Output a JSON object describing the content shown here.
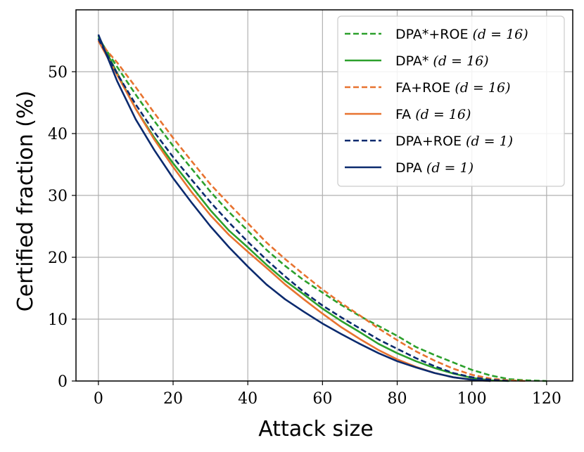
{
  "chart_data": {
    "type": "line",
    "xlabel": "Attack size",
    "ylabel": "Certified fraction (%)",
    "xlim": [
      -6,
      127
    ],
    "ylim": [
      0,
      60
    ],
    "xticks": [
      0,
      20,
      40,
      60,
      80,
      100,
      120
    ],
    "yticks": [
      0,
      10,
      20,
      30,
      40,
      50
    ],
    "grid": true,
    "legend_position": "top-right",
    "series": [
      {
        "name": "DPA*+ROE (d = 16)",
        "legend_main": "DPA*+ROE",
        "legend_math": "(d = 16)",
        "color": "#2ca02c",
        "style": "dashed",
        "x": [
          0,
          5,
          10,
          15,
          20,
          25,
          30,
          35,
          40,
          45,
          50,
          55,
          60,
          65,
          70,
          75,
          80,
          85,
          90,
          95,
          100,
          105,
          110,
          115,
          120
        ],
        "y": [
          55.5,
          50.8,
          46.3,
          42.0,
          38.0,
          34.3,
          30.6,
          27.3,
          24.3,
          21.2,
          18.6,
          16.3,
          14.3,
          12.3,
          10.5,
          8.9,
          7.3,
          5.5,
          4.2,
          3.0,
          1.8,
          0.9,
          0.3,
          0.1,
          0
        ]
      },
      {
        "name": "DPA* (d = 16)",
        "legend_main": "DPA*",
        "legend_math": "(d = 16)",
        "color": "#2ca02c",
        "style": "solid",
        "x": [
          0,
          5,
          10,
          15,
          20,
          25,
          30,
          35,
          40,
          45,
          50,
          55,
          60,
          65,
          70,
          75,
          80,
          85,
          90,
          95,
          100,
          105,
          110
        ],
        "y": [
          55.8,
          49.8,
          44.0,
          39.3,
          35.2,
          31.4,
          27.6,
          24.3,
          21.6,
          18.8,
          16.2,
          14.0,
          11.7,
          9.7,
          7.9,
          6.0,
          4.5,
          3.2,
          2.1,
          1.2,
          0.5,
          0.1,
          0
        ]
      },
      {
        "name": "FA+ROE (d = 16)",
        "legend_main": "FA+ROE",
        "legend_math": "(d = 16)",
        "color": "#e87330",
        "style": "dashed",
        "x": [
          0,
          5,
          10,
          15,
          20,
          25,
          30,
          35,
          40,
          45,
          50,
          55,
          60,
          65,
          70,
          75,
          80,
          85,
          90,
          95,
          100,
          105,
          110,
          115
        ],
        "y": [
          55.0,
          51.5,
          47.5,
          43.3,
          39.3,
          35.5,
          31.8,
          28.6,
          25.5,
          22.4,
          19.7,
          17.2,
          14.8,
          12.6,
          10.6,
          8.5,
          6.6,
          4.8,
          3.3,
          2.0,
          1.0,
          0.4,
          0.1,
          0
        ]
      },
      {
        "name": "FA (d = 16)",
        "legend_main": "FA",
        "legend_math": "(d = 16)",
        "color": "#e87330",
        "style": "solid",
        "x": [
          0,
          5,
          10,
          15,
          20,
          25,
          30,
          35,
          40,
          45,
          50,
          55,
          60,
          65,
          70,
          75,
          80,
          85,
          90,
          95,
          100,
          105
        ],
        "y": [
          55.0,
          49.5,
          44.0,
          39.0,
          34.6,
          30.5,
          26.8,
          23.6,
          20.9,
          18.3,
          15.6,
          13.2,
          10.9,
          8.7,
          6.8,
          5.0,
          3.5,
          2.3,
          1.3,
          0.6,
          0.2,
          0
        ]
      },
      {
        "name": "DPA+ROE (d = 1)",
        "legend_main": "DPA+ROE",
        "legend_math": "(d = 1)",
        "color": "#0b2a6e",
        "style": "dashed",
        "x": [
          0,
          5,
          10,
          15,
          20,
          25,
          30,
          35,
          40,
          45,
          50,
          55,
          60,
          65,
          70,
          75,
          80,
          85,
          90,
          95,
          100,
          105,
          110
        ],
        "y": [
          55.3,
          49.7,
          44.7,
          40.2,
          36.2,
          32.5,
          28.9,
          25.6,
          22.5,
          19.6,
          16.9,
          14.4,
          12.2,
          10.3,
          8.5,
          6.7,
          5.2,
          3.7,
          2.4,
          1.3,
          0.6,
          0.2,
          0
        ]
      },
      {
        "name": "DPA (d = 1)",
        "legend_main": "DPA",
        "legend_math": "(d = 1)",
        "color": "#0b2a6e",
        "style": "solid",
        "x": [
          0,
          5,
          10,
          15,
          20,
          25,
          30,
          35,
          40,
          45,
          50,
          55,
          60,
          65,
          70,
          75,
          80,
          85,
          90,
          95,
          100,
          105
        ],
        "y": [
          56.0,
          48.5,
          42.3,
          37.3,
          32.8,
          28.8,
          25.0,
          21.6,
          18.5,
          15.6,
          13.2,
          11.2,
          9.3,
          7.6,
          6.0,
          4.5,
          3.2,
          2.2,
          1.3,
          0.6,
          0.2,
          0
        ]
      }
    ]
  }
}
